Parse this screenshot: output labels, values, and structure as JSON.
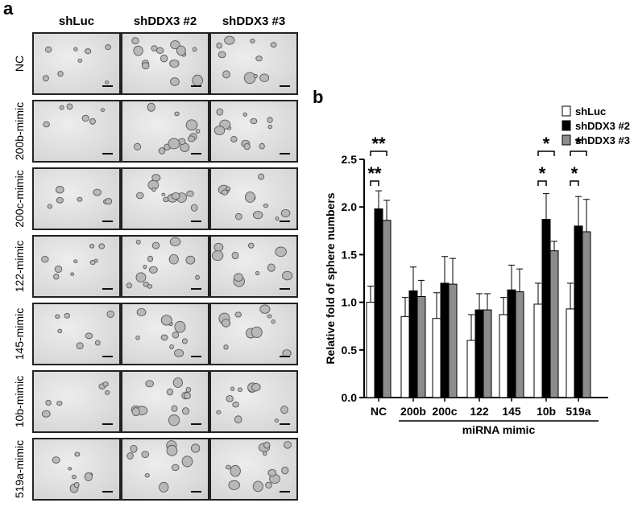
{
  "panel_a": {
    "letter": "a",
    "columns": [
      "shLuc",
      "shDDX3 #2",
      "shDDX3 #3"
    ],
    "rows": [
      "NC",
      "200b-mimic",
      "200c-mimic",
      "122-mimic",
      "145-mimic",
      "10b-mimic",
      "519a-mimic"
    ]
  },
  "panel_b": {
    "letter": "b"
  },
  "chart_data": {
    "type": "bar",
    "ylabel": "Relative fold of sphere numbers",
    "xlabel": "miRNA mimic",
    "ylim": [
      0,
      2.5
    ],
    "yticks": [
      "0.0",
      "0.5",
      "1.0",
      "1.5",
      "2.0",
      "2.5"
    ],
    "categories": [
      "NC",
      "200b",
      "200c",
      "122",
      "145",
      "10b",
      "519a"
    ],
    "series": [
      {
        "name": "shLuc",
        "color": "#ffffff",
        "values": [
          1.0,
          0.85,
          0.83,
          0.6,
          0.87,
          0.98,
          0.93
        ],
        "errors": [
          0.17,
          0.2,
          0.27,
          0.27,
          0.18,
          0.22,
          0.27
        ]
      },
      {
        "name": "shDDX3 #2",
        "color": "#000000",
        "values": [
          1.98,
          1.12,
          1.2,
          0.92,
          1.13,
          1.87,
          1.8
        ],
        "errors": [
          0.19,
          0.25,
          0.28,
          0.17,
          0.26,
          0.27,
          0.31
        ]
      },
      {
        "name": "shDDX3 #3",
        "color": "#8c8c8c",
        "values": [
          1.86,
          1.06,
          1.19,
          0.92,
          1.11,
          1.54,
          1.74
        ],
        "errors": [
          0.21,
          0.17,
          0.27,
          0.17,
          0.24,
          0.1,
          0.34
        ]
      }
    ],
    "legend_position": "top-right",
    "significance": [
      {
        "category": "NC",
        "label": "**",
        "level": "upper"
      },
      {
        "category": "NC",
        "label": "**",
        "level": "lower"
      },
      {
        "category": "10b",
        "label": "*",
        "level": "upper"
      },
      {
        "category": "10b",
        "label": "*",
        "level": "lower"
      },
      {
        "category": "519a",
        "label": "*",
        "level": "upper"
      },
      {
        "category": "519a",
        "label": "*",
        "level": "lower"
      }
    ]
  }
}
